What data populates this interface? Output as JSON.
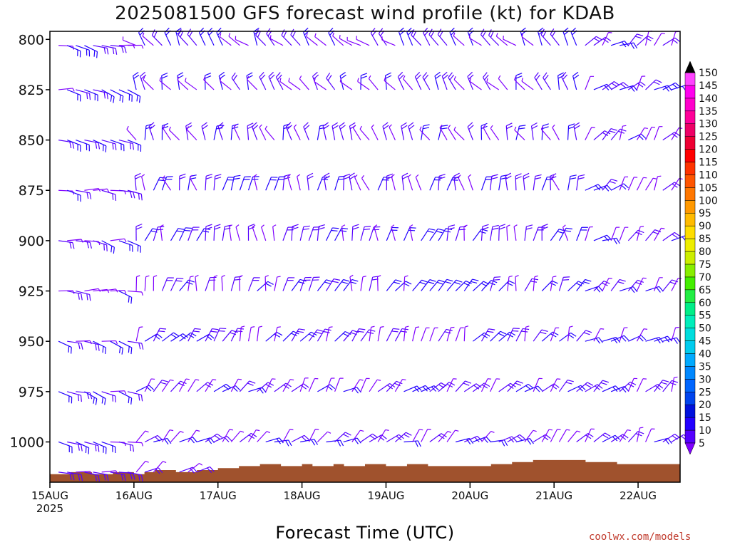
{
  "title": "2025081500 GFS forecast wind profile (kt) for KDAB",
  "credit": "coolwx.com/models",
  "chart_data": {
    "type": "wind-barb profile (time-height)",
    "title": "2025081500 GFS forecast wind profile (kt) for KDAB",
    "xlabel": "Forecast Time (UTC)",
    "ylabel": "",
    "y_axis": {
      "ticks": [
        800,
        825,
        850,
        875,
        900,
        925,
        950,
        975,
        1000
      ],
      "range": [
        796,
        1020
      ]
    },
    "x_axis": {
      "ticks": [
        {
          "label": "15AUG",
          "sublabel": "2025",
          "day": 0
        },
        {
          "label": "16AUG",
          "sublabel": "",
          "day": 1
        },
        {
          "label": "17AUG",
          "sublabel": "",
          "day": 2
        },
        {
          "label": "18AUG",
          "sublabel": "",
          "day": 3
        },
        {
          "label": "19AUG",
          "sublabel": "",
          "day": 4
        },
        {
          "label": "20AUG",
          "sublabel": "",
          "day": 5
        },
        {
          "label": "21AUG",
          "sublabel": "",
          "day": 6
        },
        {
          "label": "22AUG",
          "sublabel": "",
          "day": 7
        }
      ],
      "range_days": [
        0,
        7.5
      ]
    },
    "colorbar": {
      "levels": [
        5,
        10,
        15,
        20,
        25,
        30,
        35,
        40,
        45,
        50,
        55,
        60,
        65,
        70,
        75,
        80,
        85,
        90,
        95,
        100,
        105,
        110,
        115,
        120,
        125,
        130,
        135,
        140,
        145,
        150
      ],
      "colors": [
        "#7f00ff",
        "#5500ff",
        "#2200ff",
        "#0011dd",
        "#0044ee",
        "#0066ff",
        "#0088ff",
        "#00aaff",
        "#00ccee",
        "#00dddd",
        "#00eebb",
        "#00ee88",
        "#22ee44",
        "#44ee00",
        "#88ee00",
        "#ccee00",
        "#eeee00",
        "#ffdd00",
        "#ffbb00",
        "#ff9900",
        "#ff7700",
        "#ff5500",
        "#ff3300",
        "#ff0000",
        "#ee0033",
        "#ee0066",
        "#ff0099",
        "#ff00cc",
        "#ff00ee",
        "#ff44ff"
      ],
      "under_color": "#7f00ff",
      "over_color": "#000000"
    },
    "terrain": {
      "color": "#a0522d",
      "surface_pressure_hpa": [
        1016,
        1016,
        1015,
        1015,
        1016,
        1016,
        1015,
        1015,
        1016,
        1015,
        1014,
        1014,
        1015,
        1015,
        1014,
        1014,
        1013,
        1013,
        1012,
        1012,
        1011,
        1011,
        1012,
        1012,
        1011,
        1012,
        1012,
        1011,
        1012,
        1012,
        1011,
        1011,
        1012,
        1012,
        1011,
        1011,
        1012,
        1012,
        1012,
        1012,
        1012,
        1012,
        1011,
        1011,
        1010,
        1010,
        1009,
        1009,
        1009,
        1009,
        1009,
        1010,
        1010,
        1010,
        1011,
        1011,
        1011,
        1011,
        1011,
        1011,
        1011,
        1012
      ],
      "time_step_days": 0.125
    },
    "barb_levels_hpa": [
      803,
      825,
      850,
      875,
      900,
      925,
      950,
      975,
      1000,
      1015
    ]
  }
}
